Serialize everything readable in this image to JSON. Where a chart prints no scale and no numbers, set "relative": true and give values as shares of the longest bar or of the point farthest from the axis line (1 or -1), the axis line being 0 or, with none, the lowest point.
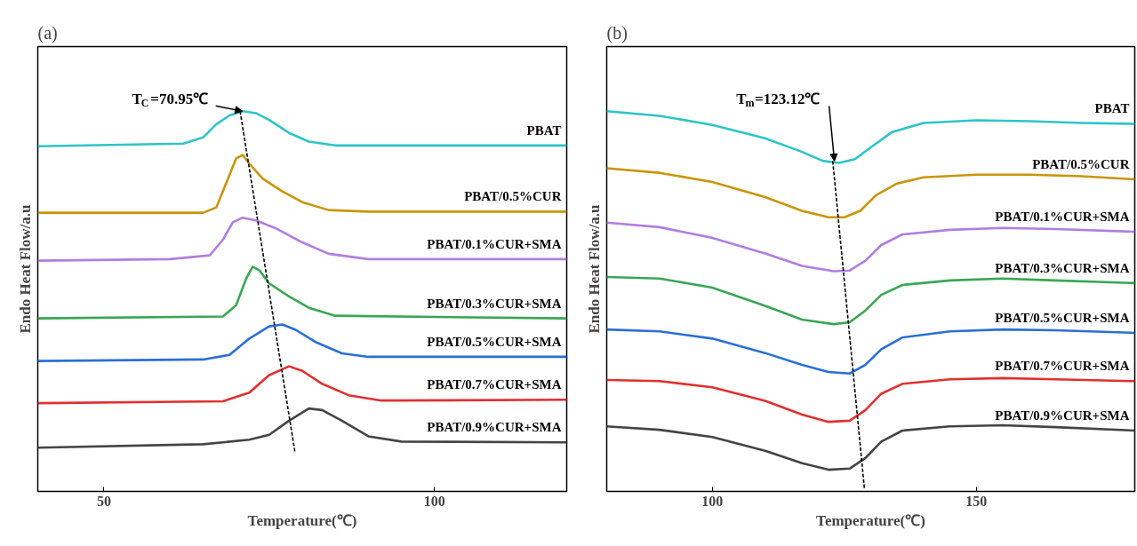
{
  "chart_data": [
    {
      "type": "line",
      "title": "(a)",
      "xlabel": "Temperature(℃)",
      "ylabel": "Endo Heat Flow/a.u",
      "relative": true,
      "xlim": [
        40,
        120
      ],
      "xticks": [
        50,
        100
      ],
      "tick_labels": "x",
      "grid": false,
      "legend": false,
      "annotations": [
        {
          "text": "T$_{C}$=70.95℃",
          "x": 70.95,
          "y": 1.0
        }
      ],
      "series": [
        {
          "name": "PBAT",
          "color": "#2ec4c8",
          "x": [
            40,
            62,
            65,
            67,
            69,
            71,
            73,
            75,
            78,
            81,
            85,
            120
          ],
          "values": [
            0.908,
            0.915,
            0.931,
            0.966,
            0.989,
            1.0,
            0.995,
            0.977,
            0.943,
            0.92,
            0.91,
            0.91
          ]
        },
        {
          "name": "PBAT/0.5%CUR",
          "color": "#c8960a",
          "x": [
            40,
            65,
            67,
            68.5,
            70,
            71,
            72,
            74,
            77,
            80,
            84,
            90,
            120
          ],
          "values": [
            0.733,
            0.733,
            0.747,
            0.811,
            0.876,
            0.885,
            0.862,
            0.823,
            0.789,
            0.761,
            0.74,
            0.736,
            0.736
          ]
        },
        {
          "name": "PBAT/0.1%CUR+SMA",
          "color": "#b07ee0",
          "x": [
            40,
            60,
            66,
            68,
            69.5,
            71,
            73,
            76,
            80,
            84,
            90,
            120
          ],
          "values": [
            0.607,
            0.611,
            0.621,
            0.662,
            0.708,
            0.72,
            0.713,
            0.692,
            0.655,
            0.625,
            0.611,
            0.611
          ]
        },
        {
          "name": "PBAT/0.3%CUR+SMA",
          "color": "#3aa655",
          "x": [
            40,
            68,
            70,
            71.5,
            72.5,
            73.5,
            75,
            78,
            81,
            85,
            120
          ],
          "values": [
            0.455,
            0.46,
            0.49,
            0.559,
            0.591,
            0.582,
            0.547,
            0.513,
            0.483,
            0.462,
            0.455
          ]
        },
        {
          "name": "PBAT/0.5%CUR+SMA",
          "color": "#2a6fd6",
          "x": [
            40,
            65,
            69,
            72,
            75,
            77,
            79,
            82,
            86,
            90,
            120
          ],
          "values": [
            0.343,
            0.347,
            0.359,
            0.402,
            0.434,
            0.439,
            0.425,
            0.393,
            0.363,
            0.354,
            0.354
          ]
        },
        {
          "name": "PBAT/0.7%CUR+SMA",
          "color": "#e03030",
          "x": [
            40,
            68,
            72,
            75,
            78,
            80,
            83,
            87,
            92,
            120
          ],
          "values": [
            0.232,
            0.237,
            0.26,
            0.306,
            0.329,
            0.317,
            0.283,
            0.253,
            0.239,
            0.241
          ]
        },
        {
          "name": "PBAT/0.9%CUR+SMA",
          "color": "#444444",
          "x": [
            40,
            65,
            72,
            75,
            78,
            81,
            83,
            86,
            90,
            95,
            120
          ],
          "values": [
            0.115,
            0.124,
            0.136,
            0.149,
            0.186,
            0.218,
            0.214,
            0.186,
            0.145,
            0.131,
            0.129
          ]
        },
        {
          "type": "line",
          "line_style": "dashed",
          "color": "#000000",
          "x": [
            70.6,
            78.9
          ],
          "values": [
            1.0,
            0.103
          ]
        }
      ]
    },
    {
      "type": "line",
      "title": "(b)",
      "xlabel": "Temperature(℃)",
      "ylabel": "Endo Heat Flow/a.u",
      "relative": true,
      "xlim": [
        80,
        180
      ],
      "xticks": [
        100,
        150
      ],
      "tick_labels": "x",
      "grid": false,
      "legend": false,
      "annotations": [
        {
          "text": "T$_{m}$=123.12℃",
          "x": 123.12,
          "y": 0.869
        }
      ],
      "series": [
        {
          "name": "PBAT",
          "color": "#2ec4c8",
          "x": [
            80,
            90,
            100,
            110,
            117,
            121,
            124,
            127,
            130,
            134,
            140,
            150,
            160,
            170,
            180
          ],
          "values": [
            1.0,
            0.988,
            0.964,
            0.929,
            0.893,
            0.869,
            0.864,
            0.874,
            0.905,
            0.945,
            0.969,
            0.976,
            0.974,
            0.969,
            0.967
          ]
        },
        {
          "name": "PBAT/0.5%CUR",
          "color": "#c8960a",
          "x": [
            80,
            90,
            100,
            110,
            117,
            122,
            125,
            128,
            131,
            135,
            140,
            150,
            160,
            170,
            180
          ],
          "values": [
            0.85,
            0.838,
            0.814,
            0.774,
            0.738,
            0.721,
            0.721,
            0.738,
            0.779,
            0.81,
            0.826,
            0.833,
            0.833,
            0.829,
            0.821
          ]
        },
        {
          "name": "PBAT/0.1%CUR+SMA",
          "color": "#b07ee0",
          "x": [
            80,
            90,
            100,
            110,
            117,
            123,
            126,
            129,
            132,
            136,
            145,
            155,
            165,
            180
          ],
          "values": [
            0.707,
            0.695,
            0.667,
            0.626,
            0.593,
            0.579,
            0.581,
            0.607,
            0.648,
            0.676,
            0.688,
            0.693,
            0.69,
            0.683
          ]
        },
        {
          "name": "PBAT/0.3%CUR+SMA",
          "color": "#3aa655",
          "x": [
            80,
            90,
            100,
            110,
            117,
            123,
            126,
            129,
            132,
            136,
            145,
            155,
            165,
            180
          ],
          "values": [
            0.564,
            0.56,
            0.536,
            0.488,
            0.452,
            0.44,
            0.445,
            0.476,
            0.517,
            0.543,
            0.555,
            0.56,
            0.555,
            0.548
          ]
        },
        {
          "name": "PBAT/0.5%CUR+SMA",
          "color": "#2a6fd6",
          "x": [
            80,
            90,
            100,
            110,
            117,
            122,
            126,
            129,
            132,
            136,
            145,
            155,
            165,
            180
          ],
          "values": [
            0.426,
            0.421,
            0.402,
            0.364,
            0.333,
            0.314,
            0.31,
            0.333,
            0.374,
            0.405,
            0.421,
            0.426,
            0.424,
            0.417
          ]
        },
        {
          "name": "PBAT/0.7%CUR+SMA",
          "color": "#e03030",
          "x": [
            80,
            90,
            100,
            110,
            117,
            122,
            126,
            129,
            132,
            136,
            145,
            155,
            165,
            180
          ],
          "values": [
            0.293,
            0.29,
            0.274,
            0.238,
            0.202,
            0.183,
            0.186,
            0.214,
            0.257,
            0.283,
            0.295,
            0.298,
            0.295,
            0.29
          ]
        },
        {
          "name": "PBAT/0.9%CUR+SMA",
          "color": "#444444",
          "x": [
            80,
            90,
            100,
            110,
            117,
            122,
            126,
            129,
            132,
            136,
            145,
            155,
            165,
            180
          ],
          "values": [
            0.171,
            0.162,
            0.143,
            0.107,
            0.074,
            0.057,
            0.06,
            0.088,
            0.131,
            0.16,
            0.171,
            0.174,
            0.169,
            0.16
          ]
        },
        {
          "type": "line",
          "line_style": "dashed",
          "color": "#000000",
          "x": [
            122.8,
            128.8
          ],
          "values": [
            0.869,
            0.007
          ]
        }
      ]
    }
  ]
}
